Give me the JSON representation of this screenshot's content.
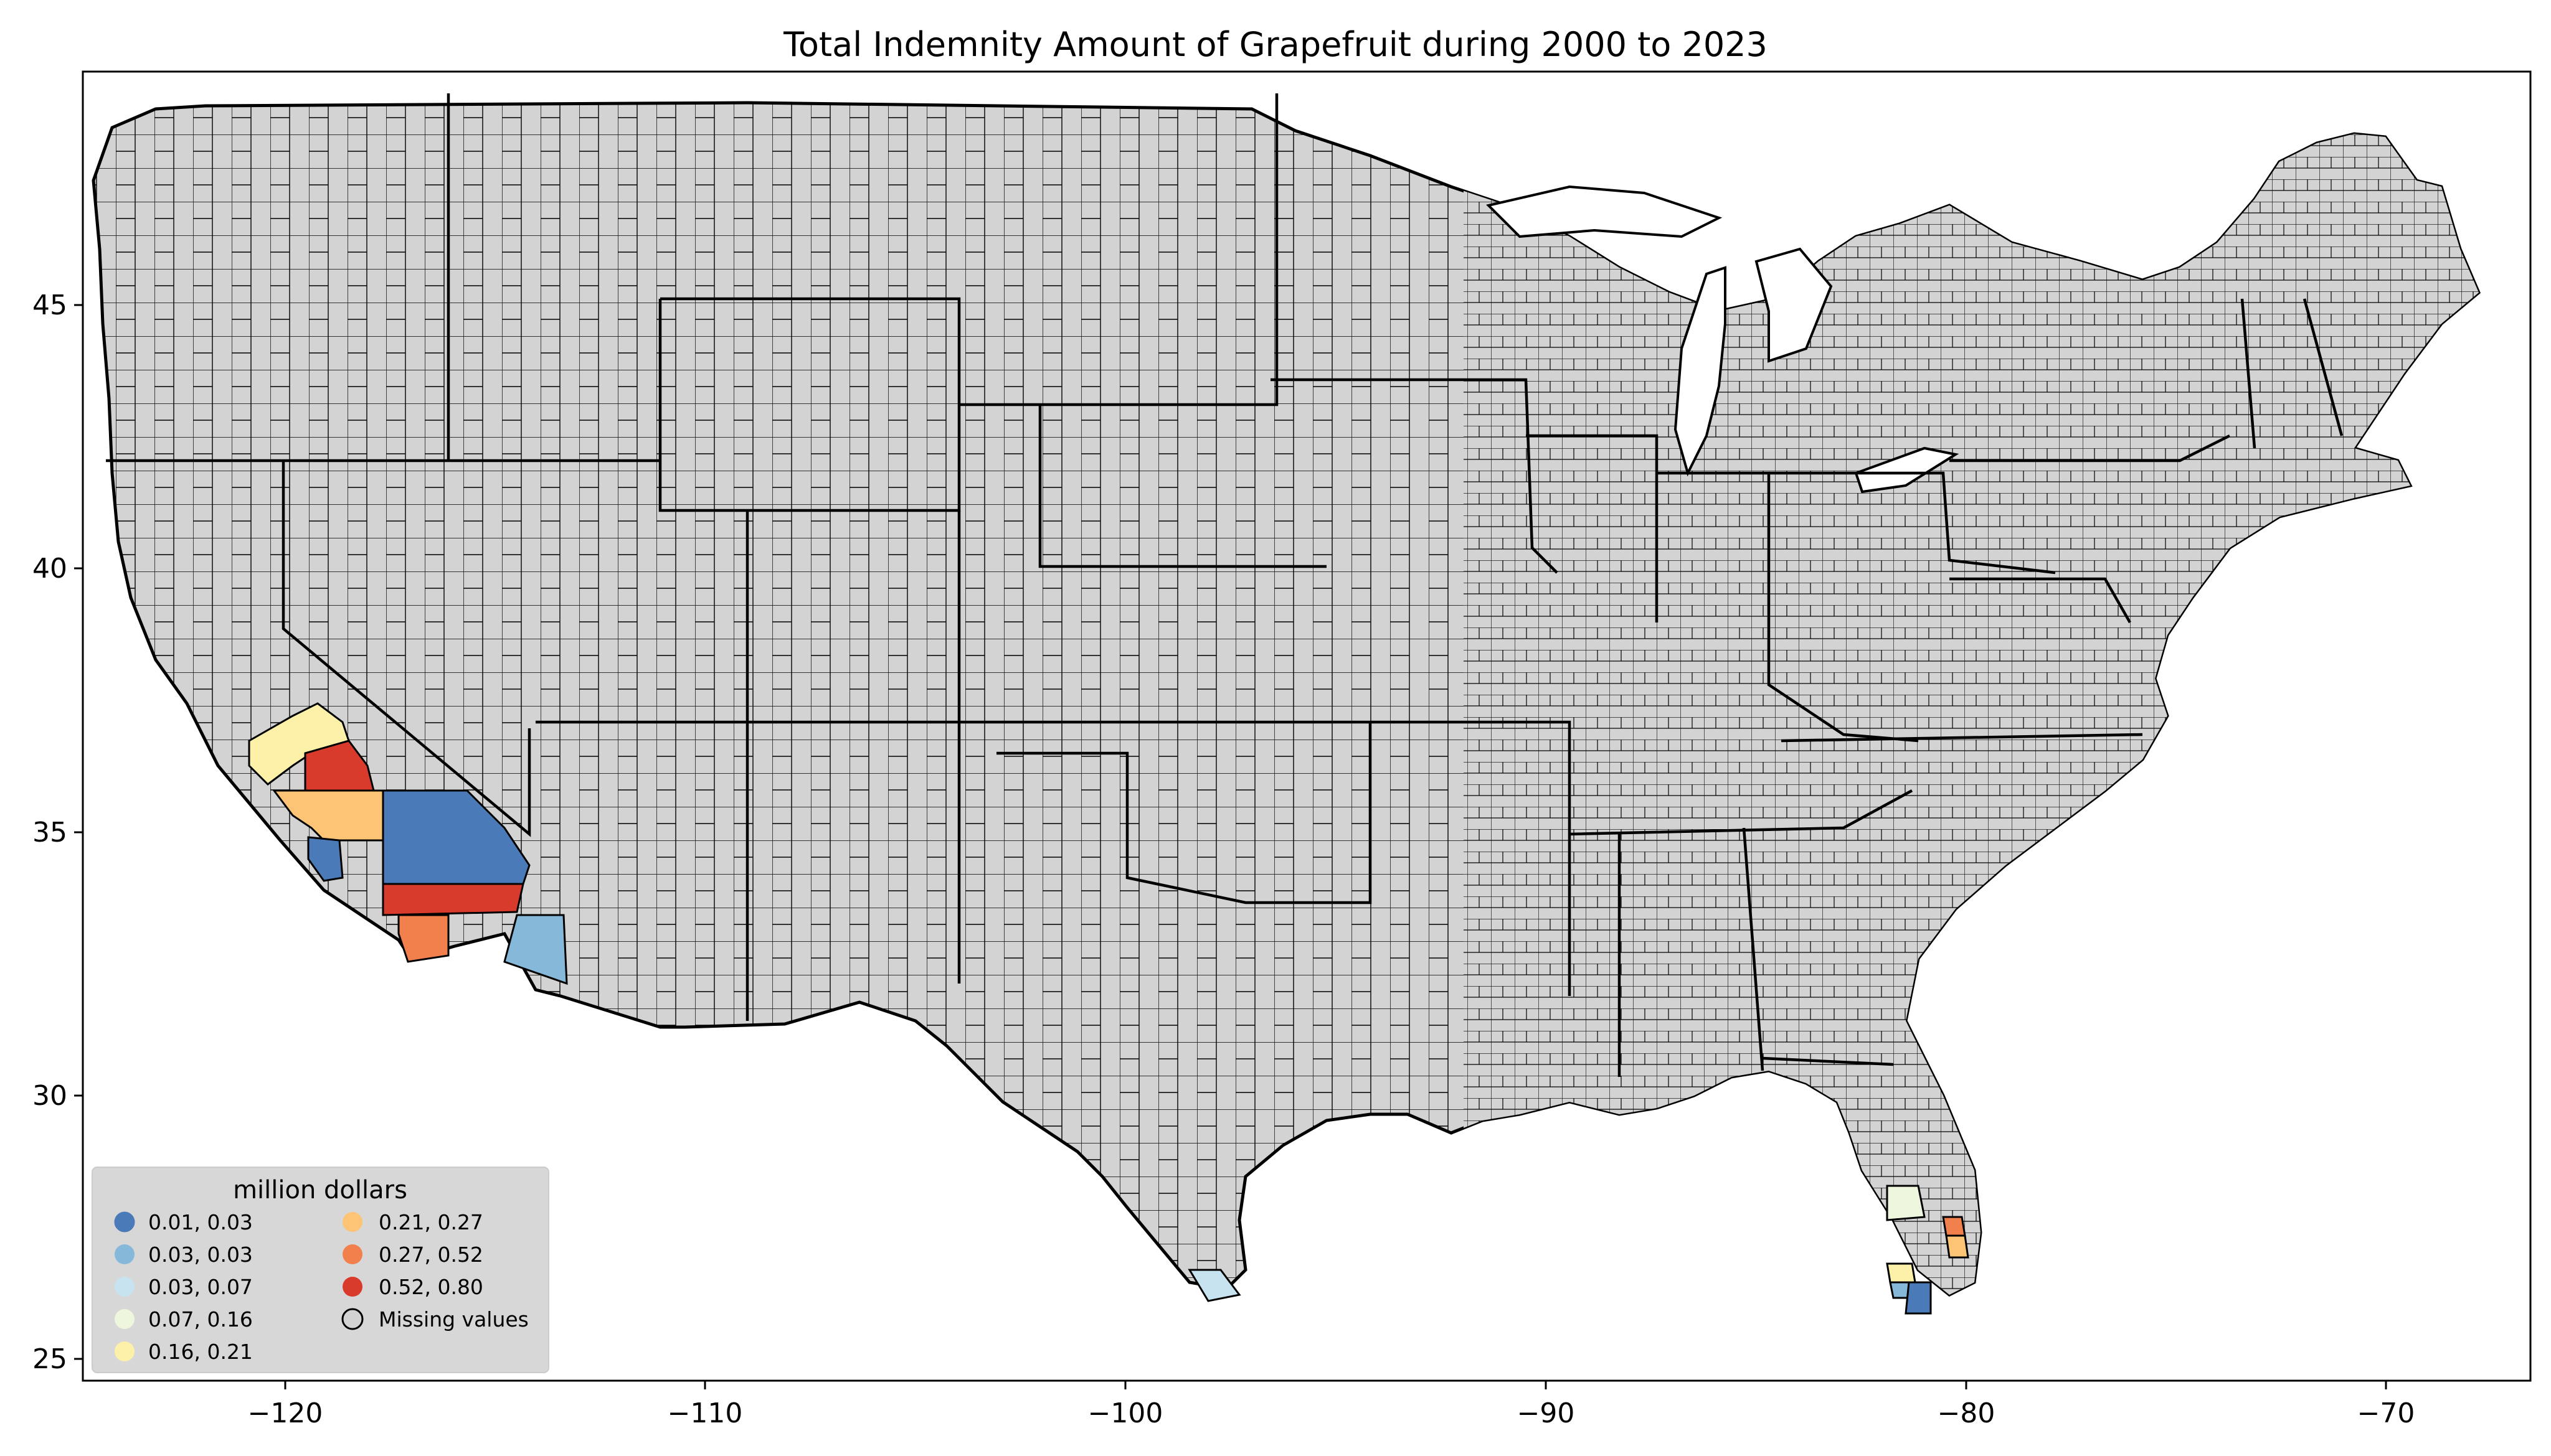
{
  "chart_data": {
    "type": "choropleth",
    "title": "Total Indemnity Amount of Grapefruit during 2000 to 2023",
    "x_ticks": [
      "−120",
      "−110",
      "−100",
      "−90",
      "−80",
      "−70"
    ],
    "y_ticks": [
      "25",
      "30",
      "35",
      "40",
      "45"
    ],
    "x_tick_values": [
      -120,
      -110,
      -100,
      -90,
      -80,
      -70
    ],
    "y_tick_values": [
      25,
      30,
      35,
      40,
      45
    ],
    "xlim": [
      -124.8,
      -66.5
    ],
    "ylim": [
      24.5,
      49.4
    ],
    "default_fill": "#d3d3d3",
    "legend": {
      "title": "million dollars",
      "placement": "lower-left",
      "entries": [
        {
          "label": "0.01, 0.03",
          "color": "#4a7ab8"
        },
        {
          "label": "0.03, 0.03",
          "color": "#86b9d9"
        },
        {
          "label": "0.03, 0.07",
          "color": "#c6e3ef"
        },
        {
          "label": "0.07, 0.16",
          "color": "#eef7de"
        },
        {
          "label": "0.16, 0.21",
          "color": "#fdf1a9"
        },
        {
          "label": "0.21, 0.27",
          "color": "#fcc474"
        },
        {
          "label": "0.27, 0.52",
          "color": "#f2804c"
        },
        {
          "label": "0.52, 0.80",
          "color": "#d83a2c"
        },
        {
          "label": "Missing values",
          "color": "#d3d3d3"
        }
      ]
    },
    "regions": [
      {
        "name": "Fresno area, CA",
        "bin": "0.16, 0.21",
        "color": "#fdf1a9"
      },
      {
        "name": "Tulare, CA",
        "bin": "0.52, 0.80",
        "color": "#d83a2c"
      },
      {
        "name": "Kern, CA",
        "bin": "0.21, 0.27",
        "color": "#fcc474"
      },
      {
        "name": "Ventura, CA",
        "bin": "0.01, 0.03",
        "color": "#4a7ab8"
      },
      {
        "name": "San Bernardino, CA",
        "bin": "0.01, 0.03",
        "color": "#4a7ab8"
      },
      {
        "name": "Riverside, CA",
        "bin": "0.52, 0.80",
        "color": "#d83a2c"
      },
      {
        "name": "San Diego, CA",
        "bin": "0.27, 0.52",
        "color": "#f2804c"
      },
      {
        "name": "Yuma, AZ",
        "bin": "0.03, 0.03",
        "color": "#86b9d9"
      },
      {
        "name": "Hidalgo, TX",
        "bin": "0.03, 0.07",
        "color": "#c6e3ef"
      },
      {
        "name": "Polk area, FL",
        "bin": "0.07, 0.16",
        "color": "#eef7de"
      },
      {
        "name": "Indian River, FL",
        "bin": "0.27, 0.52",
        "color": "#f2804c"
      },
      {
        "name": "St. Lucie, FL",
        "bin": "0.21, 0.27",
        "color": "#fcc474"
      },
      {
        "name": "Hendry, FL",
        "bin": "0.16, 0.21",
        "color": "#fdf1a9"
      },
      {
        "name": "Collier area, FL",
        "bin": "0.01, 0.03",
        "color": "#4a7ab8"
      },
      {
        "name": "Lee, FL",
        "bin": "0.03, 0.03",
        "color": "#86b9d9"
      }
    ]
  }
}
